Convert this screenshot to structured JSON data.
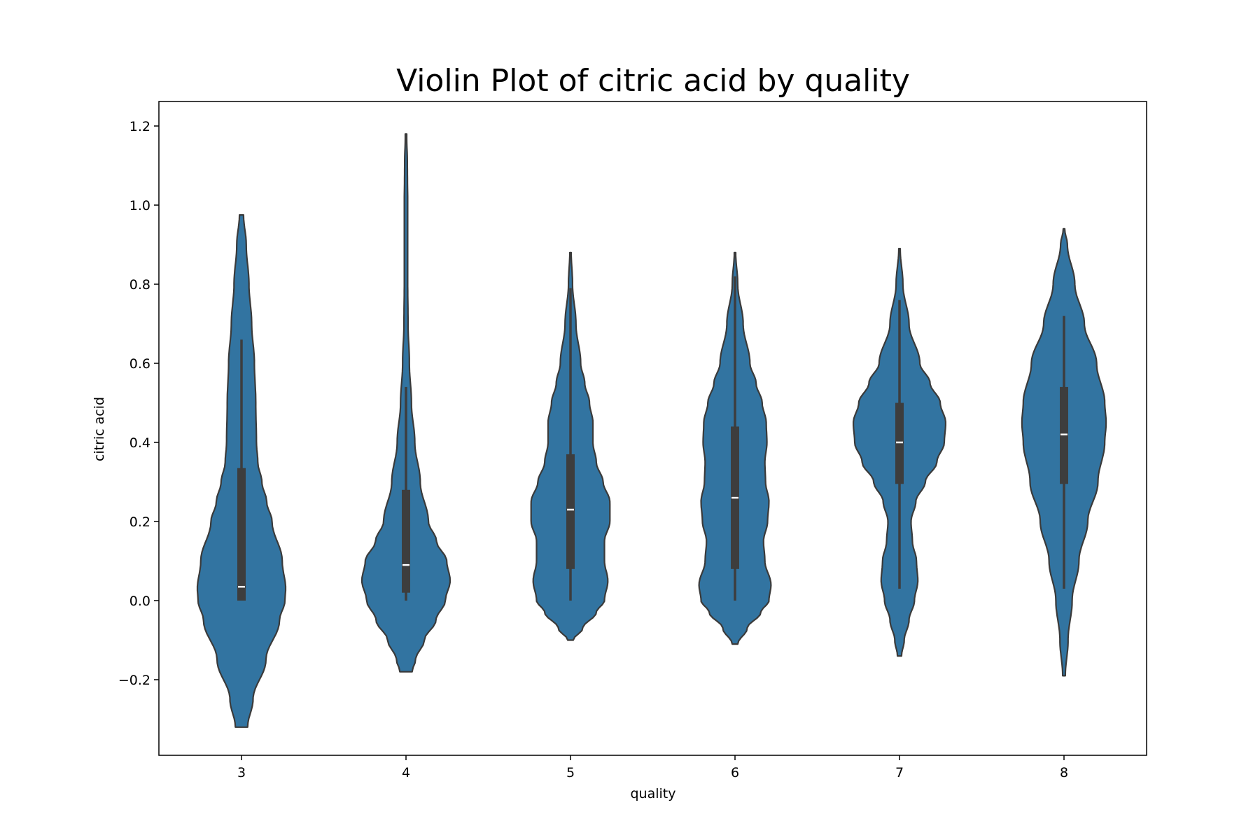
{
  "chart_data": {
    "type": "violin",
    "title": "Violin Plot of citric acid by quality",
    "xlabel": "quality",
    "ylabel": "citric acid",
    "categories": [
      "3",
      "4",
      "5",
      "6",
      "7",
      "8"
    ],
    "ylim": [
      -0.39,
      1.26
    ],
    "yticks": [
      -0.2,
      0.0,
      0.2,
      0.4,
      0.6,
      0.8,
      1.0,
      1.2
    ],
    "ytick_labels": [
      "−0.2",
      "0.0",
      "0.2",
      "0.4",
      "0.6",
      "0.8",
      "1.0",
      "1.2"
    ],
    "grid": false,
    "fill_color": "#3274a1",
    "edge_color": "#3a3a3a",
    "box_color": "#3d3d3d",
    "median_color": "#ffffff",
    "violins": [
      {
        "category": "3",
        "box": {
          "whisker_low": 0.0,
          "q1": 0.0,
          "median": 0.035,
          "q3": 0.335,
          "whisker_high": 0.66
        },
        "profile": [
          [
            -0.32,
            0.09
          ],
          [
            -0.25,
            0.17
          ],
          [
            -0.15,
            0.36
          ],
          [
            -0.05,
            0.56
          ],
          [
            0.0,
            0.64
          ],
          [
            0.03,
            0.65
          ],
          [
            0.1,
            0.6
          ],
          [
            0.2,
            0.45
          ],
          [
            0.25,
            0.37
          ],
          [
            0.3,
            0.3
          ],
          [
            0.35,
            0.24
          ],
          [
            0.4,
            0.22
          ],
          [
            0.5,
            0.21
          ],
          [
            0.6,
            0.19
          ],
          [
            0.7,
            0.15
          ],
          [
            0.8,
            0.11
          ],
          [
            0.9,
            0.07
          ],
          [
            0.975,
            0.03
          ]
        ]
      },
      {
        "category": "4",
        "box": {
          "whisker_low": 0.0,
          "q1": 0.02,
          "median": 0.09,
          "q3": 0.28,
          "whisker_high": 0.54
        },
        "profile": [
          [
            -0.18,
            0.09
          ],
          [
            -0.15,
            0.14
          ],
          [
            -0.1,
            0.27
          ],
          [
            -0.05,
            0.44
          ],
          [
            0.0,
            0.58
          ],
          [
            0.05,
            0.65
          ],
          [
            0.1,
            0.6
          ],
          [
            0.15,
            0.45
          ],
          [
            0.2,
            0.33
          ],
          [
            0.3,
            0.21
          ],
          [
            0.4,
            0.13
          ],
          [
            0.5,
            0.08
          ],
          [
            0.6,
            0.05
          ],
          [
            0.7,
            0.03
          ],
          [
            0.8,
            0.025
          ],
          [
            0.9,
            0.025
          ],
          [
            1.0,
            0.025
          ],
          [
            1.1,
            0.02
          ],
          [
            1.18,
            0.01
          ]
        ]
      },
      {
        "category": "5",
        "box": {
          "whisker_low": 0.0,
          "q1": 0.08,
          "median": 0.23,
          "q3": 0.37,
          "whisker_high": 0.79
        },
        "profile": [
          [
            -0.1,
            0.04
          ],
          [
            -0.07,
            0.18
          ],
          [
            -0.03,
            0.38
          ],
          [
            0.0,
            0.5
          ],
          [
            0.05,
            0.55
          ],
          [
            0.1,
            0.5
          ],
          [
            0.15,
            0.5
          ],
          [
            0.2,
            0.58
          ],
          [
            0.25,
            0.58
          ],
          [
            0.3,
            0.48
          ],
          [
            0.35,
            0.38
          ],
          [
            0.4,
            0.33
          ],
          [
            0.45,
            0.33
          ],
          [
            0.5,
            0.28
          ],
          [
            0.55,
            0.21
          ],
          [
            0.6,
            0.15
          ],
          [
            0.7,
            0.08
          ],
          [
            0.8,
            0.03
          ],
          [
            0.88,
            0.01
          ]
        ]
      },
      {
        "category": "6",
        "box": {
          "whisker_low": 0.0,
          "q1": 0.08,
          "median": 0.26,
          "q3": 0.44,
          "whisker_high": 0.82
        },
        "profile": [
          [
            -0.11,
            0.04
          ],
          [
            -0.07,
            0.18
          ],
          [
            -0.03,
            0.38
          ],
          [
            0.0,
            0.5
          ],
          [
            0.04,
            0.53
          ],
          [
            0.1,
            0.44
          ],
          [
            0.15,
            0.42
          ],
          [
            0.2,
            0.48
          ],
          [
            0.25,
            0.5
          ],
          [
            0.3,
            0.45
          ],
          [
            0.35,
            0.44
          ],
          [
            0.4,
            0.47
          ],
          [
            0.45,
            0.46
          ],
          [
            0.5,
            0.4
          ],
          [
            0.55,
            0.31
          ],
          [
            0.6,
            0.22
          ],
          [
            0.7,
            0.12
          ],
          [
            0.8,
            0.04
          ],
          [
            0.88,
            0.01
          ]
        ]
      },
      {
        "category": "7",
        "box": {
          "whisker_low": 0.03,
          "q1": 0.295,
          "median": 0.4,
          "q3": 0.5,
          "whisker_high": 0.76
        },
        "profile": [
          [
            -0.14,
            0.03
          ],
          [
            -0.1,
            0.07
          ],
          [
            -0.05,
            0.14
          ],
          [
            0.0,
            0.22
          ],
          [
            0.05,
            0.27
          ],
          [
            0.1,
            0.25
          ],
          [
            0.15,
            0.19
          ],
          [
            0.2,
            0.17
          ],
          [
            0.25,
            0.24
          ],
          [
            0.3,
            0.38
          ],
          [
            0.35,
            0.55
          ],
          [
            0.4,
            0.66
          ],
          [
            0.45,
            0.68
          ],
          [
            0.5,
            0.6
          ],
          [
            0.55,
            0.45
          ],
          [
            0.6,
            0.3
          ],
          [
            0.7,
            0.14
          ],
          [
            0.8,
            0.05
          ],
          [
            0.89,
            0.01
          ]
        ]
      },
      {
        "category": "8",
        "box": {
          "whisker_low": 0.03,
          "q1": 0.295,
          "median": 0.42,
          "q3": 0.54,
          "whisker_high": 0.72
        },
        "profile": [
          [
            -0.19,
            0.02
          ],
          [
            -0.1,
            0.06
          ],
          [
            0.0,
            0.12
          ],
          [
            0.1,
            0.22
          ],
          [
            0.2,
            0.35
          ],
          [
            0.3,
            0.5
          ],
          [
            0.4,
            0.6
          ],
          [
            0.45,
            0.62
          ],
          [
            0.5,
            0.6
          ],
          [
            0.6,
            0.48
          ],
          [
            0.7,
            0.3
          ],
          [
            0.8,
            0.16
          ],
          [
            0.9,
            0.05
          ],
          [
            0.94,
            0.01
          ]
        ]
      }
    ]
  }
}
